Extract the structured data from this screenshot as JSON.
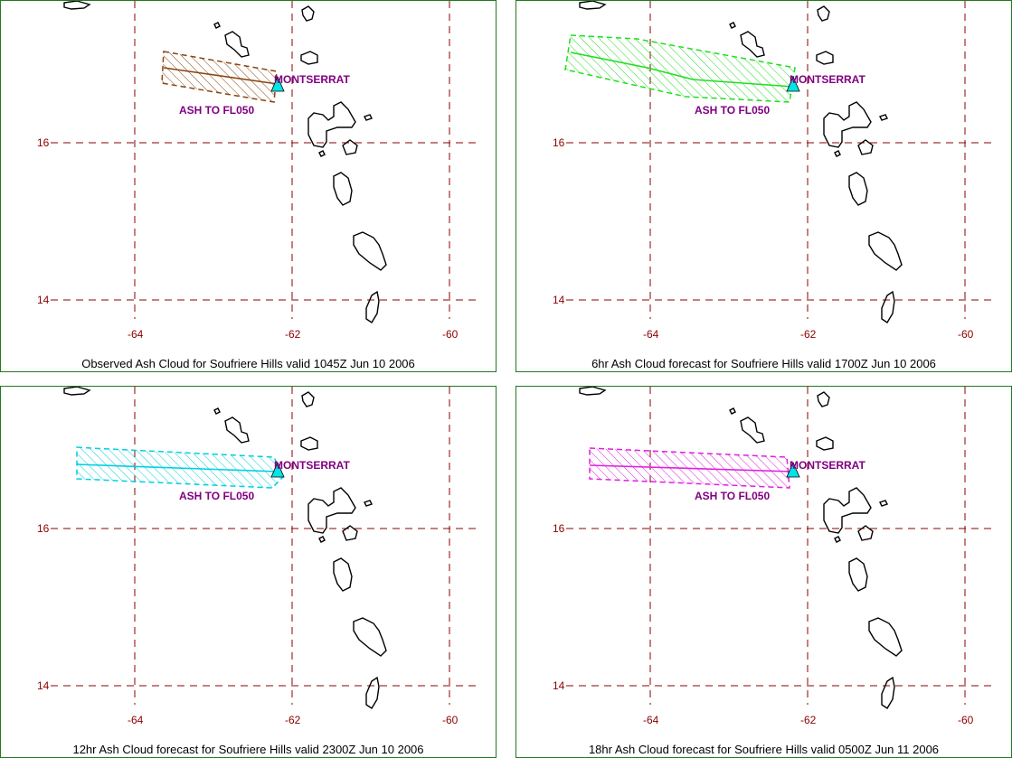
{
  "colors": {
    "grid": "#8b0000",
    "panel_border": "#1f7a1f",
    "coast": "#000000",
    "volcano": "#00e5e5",
    "volcano_label": "#800080"
  },
  "panels": [
    {
      "id": "observed",
      "caption": "Observed Ash Cloud for Soufriere  Hills valid 1045Z Jun 10 2006",
      "ash_color": "#8b4513",
      "ash_label": "ASH TO FL050",
      "axis_line_start_lon": -63.6
    },
    {
      "id": "fcst-6hr",
      "caption": "6hr Ash Cloud forecast for Soufriere  Hills valid 1700Z Jun 10 2006",
      "ash_color": "#22dd22",
      "ash_label": "ASH TO FL050",
      "axis_line_start_lon": -65.0
    },
    {
      "id": "fcst-12hr",
      "caption": "12hr Ash Cloud forecast for Soufriere  Hills valid 2300Z Jun 10 2006",
      "ash_color": "#00d0e0",
      "ash_label": "ASH TO FL050",
      "axis_line_start_lon": -65.4
    },
    {
      "id": "fcst-18hr",
      "caption": "18hr Ash Cloud forecast for Soufriere  Hills valid 0500Z Jun 11 2006",
      "ash_color": "#e020e0",
      "ash_label": "ASH TO FL050",
      "axis_line_start_lon": -64.9
    }
  ],
  "volcano_label": "MONTSERRAT",
  "grid": {
    "lon_labels": [
      "-64",
      "-62",
      "-60"
    ],
    "lat_labels": [
      "16",
      "14"
    ]
  }
}
